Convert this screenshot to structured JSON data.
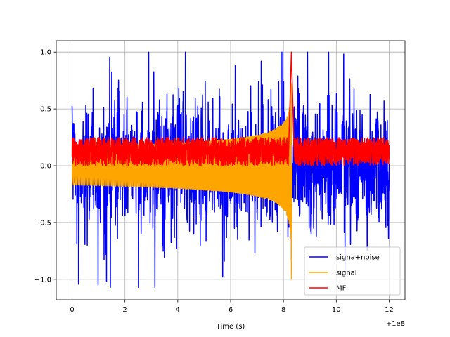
{
  "chart_data": {
    "type": "line",
    "title": "",
    "xlabel": "Time (s)",
    "ylabel": "",
    "x_offset_label": "+1e8",
    "xlim": [
      -0.6,
      12.6
    ],
    "ylim": [
      -1.18,
      1.1
    ],
    "x_ticks": [
      0,
      2,
      4,
      6,
      8,
      10,
      12
    ],
    "x_tick_labels": [
      "0",
      "2",
      "4",
      "6",
      "8",
      "10",
      "12"
    ],
    "y_ticks": [
      -1.0,
      -0.5,
      0.0,
      0.5,
      1.0
    ],
    "y_tick_labels": [
      "−1.0",
      "−0.5",
      "0.0",
      "0.5",
      "1.0"
    ],
    "grid": true,
    "legend_position": "lower-right",
    "series": [
      {
        "name": "signa+noise",
        "color": "#0000ff",
        "x_range": [
          0,
          12
        ],
        "y_range": [
          -1.07,
          1.0
        ],
        "peaks": [
          {
            "x": 1.3,
            "y": 1.0
          },
          {
            "x": 2.9,
            "y": 1.0
          },
          {
            "x": 1.45,
            "y": -1.07
          },
          {
            "x": 1.3,
            "y": -1.02
          },
          {
            "x": 5.7,
            "y": -0.98
          }
        ]
      },
      {
        "name": "signal",
        "color": "#ffa500",
        "x_range": [
          0,
          8.3
        ],
        "y_range": [
          -1.0,
          1.0
        ],
        "chirp_end_x": 8.3,
        "start_amplitude": 0.17
      },
      {
        "name": "MF",
        "color": "#ff0000",
        "x_range": [
          0,
          12
        ],
        "y_range": [
          0.0,
          1.0
        ],
        "peak": {
          "x": 8.3,
          "y": 1.0
        },
        "baseline_band": [
          0.0,
          0.25
        ]
      }
    ]
  }
}
